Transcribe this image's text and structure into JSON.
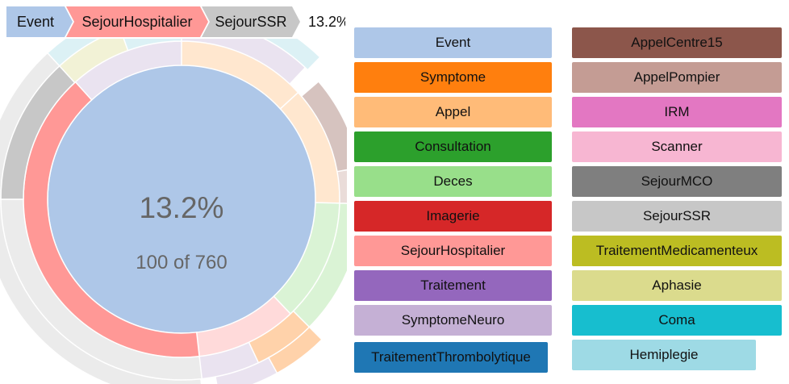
{
  "breadcrumb": {
    "trail": [
      {
        "label": "Event",
        "color": "#aec7e8"
      },
      {
        "label": "SejourHospitalier",
        "color": "#ff9896"
      },
      {
        "label": "SejourSSR",
        "color": "#c7c7c7"
      }
    ],
    "percentage": "13.2%"
  },
  "center": {
    "percentage": "13.2%",
    "count_text": "100 of 760"
  },
  "chart_data": {
    "type": "sunburst",
    "total": 760,
    "highlighted": {
      "path": [
        "Event",
        "SejourHospitalier",
        "SejourSSR"
      ],
      "count": 100,
      "percentage": "13.2%"
    },
    "rings": [
      [
        {
          "name": "Event",
          "start": 0,
          "end": 1.0
        }
      ],
      [
        {
          "name": "Appel",
          "start": 0.0,
          "end": 0.132
        },
        {
          "name": "Appel",
          "start": 0.132,
          "end": 0.254
        },
        {
          "name": "Deces",
          "start": 0.254,
          "end": 0.379
        },
        {
          "name": "SejourHospitalier",
          "start": 0.379,
          "end": 0.482
        },
        {
          "name": "SejourHospitalier",
          "start": 0.482,
          "end": 0.883
        },
        {
          "name": "SymptomeNeuro",
          "start": 0.883,
          "end": 1.0
        }
      ],
      [
        {
          "name": "SymptomeNeuro",
          "start": 0.0,
          "end": 0.12
        },
        {
          "name": "AppelCentre15",
          "start": 0.137,
          "end": 0.222
        },
        {
          "name": "AppelPompier",
          "start": 0.222,
          "end": 0.254
        },
        {
          "name": "Deces",
          "start": 0.254,
          "end": 0.375
        },
        {
          "name": "Symptome",
          "start": 0.375,
          "end": 0.43
        },
        {
          "name": "SymptomeNeuro",
          "start": 0.43,
          "end": 0.482
        },
        {
          "name": "SejourSSR",
          "start": 0.482,
          "end": 0.75
        },
        {
          "name": "SejourSSR",
          "start": 0.75,
          "end": 0.882
        },
        {
          "name": "Aphasie",
          "start": 0.882,
          "end": 0.945
        },
        {
          "name": "Hemiplegie",
          "start": 0.945,
          "end": 1.0
        }
      ],
      [
        {
          "name": "Aphasie",
          "start": 0.0,
          "end": 0.055
        },
        {
          "name": "Coma",
          "start": 0.055,
          "end": 0.075
        },
        {
          "name": "Hemiplegie",
          "start": 0.075,
          "end": 0.123
        },
        {
          "name": "AppelPompier",
          "start": 0.188,
          "end": 0.254
        },
        {
          "name": "Symptome",
          "start": 0.375,
          "end": 0.42
        },
        {
          "name": "SymptomeNeuro",
          "start": 0.42,
          "end": 0.47
        },
        {
          "name": "SejourSSR",
          "start": 0.483,
          "end": 0.75
        },
        {
          "name": "SejourSSR",
          "start": 0.75,
          "end": 0.882
        },
        {
          "name": "Hemiplegie",
          "start": 0.882,
          "end": 0.945
        }
      ]
    ]
  },
  "colors": {
    "Event": "#aec7e8",
    "Symptome": "#ff7f0e",
    "Appel": "#ffbb78",
    "Consultation": "#2ca02c",
    "Deces": "#98df8a",
    "Imagerie": "#d62728",
    "SejourHospitalier": "#ff9896",
    "Traitement": "#9467bd",
    "SymptomeNeuro": "#c5b0d5",
    "TraitementThrombolytique": "#1f77b4",
    "AppelCentre15": "#8c564b",
    "AppelPompier": "#c49c94",
    "IRM": "#e377c2",
    "Scanner": "#f7b6d2",
    "SejourMCO": "#7f7f7f",
    "SejourSSR": "#c7c7c7",
    "TraitementMedicamenteux": "#bcbd22",
    "Aphasie": "#dbdb8d",
    "Coma": "#17becf",
    "Hemiplegie": "#9edae5"
  },
  "legend": {
    "items": [
      {
        "label": "Event",
        "key": "Event"
      },
      {
        "label": "Symptome",
        "key": "Symptome"
      },
      {
        "label": "Appel",
        "key": "Appel"
      },
      {
        "label": "Consultation",
        "key": "Consultation"
      },
      {
        "label": "Deces",
        "key": "Deces"
      },
      {
        "label": "Imagerie",
        "key": "Imagerie"
      },
      {
        "label": "SejourHospitalier",
        "key": "SejourHospitalier"
      },
      {
        "label": "Traitement",
        "key": "Traitement"
      },
      {
        "label": "SymptomeNeuro",
        "key": "SymptomeNeuro"
      },
      {
        "label": "TraitementThrombolytique",
        "key": "TraitementThrombolytique"
      },
      {
        "label": "AppelCentre15",
        "key": "AppelCentre15"
      },
      {
        "label": "AppelPompier",
        "key": "AppelPompier"
      },
      {
        "label": "IRM",
        "key": "IRM"
      },
      {
        "label": "Scanner",
        "key": "Scanner"
      },
      {
        "label": "SejourMCO",
        "key": "SejourMCO"
      },
      {
        "label": "SejourSSR",
        "key": "SejourSSR"
      },
      {
        "label": "TraitementMedicamenteux",
        "key": "TraitementMedicamenteux"
      },
      {
        "label": "Aphasie",
        "key": "Aphasie"
      },
      {
        "label": "Coma",
        "key": "Coma"
      },
      {
        "label": "Hemiplegie",
        "key": "Hemiplegie"
      }
    ]
  }
}
